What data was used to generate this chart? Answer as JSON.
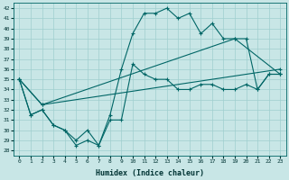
{
  "xlabel": "Humidex (Indice chaleur)",
  "bg_color": "#c8e6e6",
  "line_color": "#006666",
  "grid_color": "#9fcfcf",
  "ylim": [
    27.5,
    42.5
  ],
  "xlim": [
    -0.5,
    23.5
  ],
  "yticks": [
    28,
    29,
    30,
    31,
    32,
    33,
    34,
    35,
    36,
    37,
    38,
    39,
    40,
    41,
    42
  ],
  "xticks": [
    0,
    1,
    2,
    3,
    4,
    5,
    6,
    7,
    8,
    9,
    10,
    11,
    12,
    13,
    14,
    15,
    16,
    17,
    18,
    19,
    20,
    21,
    22,
    23
  ],
  "line1_x": [
    0,
    1,
    2,
    3,
    4,
    5,
    6,
    7,
    8,
    9,
    10,
    11,
    12,
    13,
    14,
    15,
    16,
    17,
    18,
    19,
    20,
    21,
    22,
    23
  ],
  "line1_y": [
    35,
    31.5,
    32,
    30.5,
    30,
    29,
    30,
    28.5,
    31,
    31,
    36.5,
    35.5,
    35,
    35,
    34,
    34,
    34.5,
    34.5,
    34,
    34,
    34.5,
    34,
    35.5,
    35.5
  ],
  "line2_x": [
    0,
    2,
    23
  ],
  "line2_y": [
    35,
    32.5,
    36
  ],
  "line3_x": [
    0,
    2,
    19,
    23
  ],
  "line3_y": [
    35,
    32.5,
    39,
    35.5
  ],
  "line4_x": [
    0,
    1,
    2,
    3,
    4,
    5,
    6,
    7,
    8,
    9,
    10,
    11,
    12,
    13,
    14,
    15,
    16,
    17,
    18,
    19,
    20,
    21,
    22,
    23
  ],
  "line4_y": [
    35,
    31.5,
    32,
    30.5,
    30,
    28.5,
    29,
    28.5,
    31.5,
    36,
    39.5,
    41.5,
    41.5,
    42,
    41,
    41.5,
    39.5,
    40.5,
    39,
    39,
    39,
    34,
    35.5,
    35.5
  ]
}
